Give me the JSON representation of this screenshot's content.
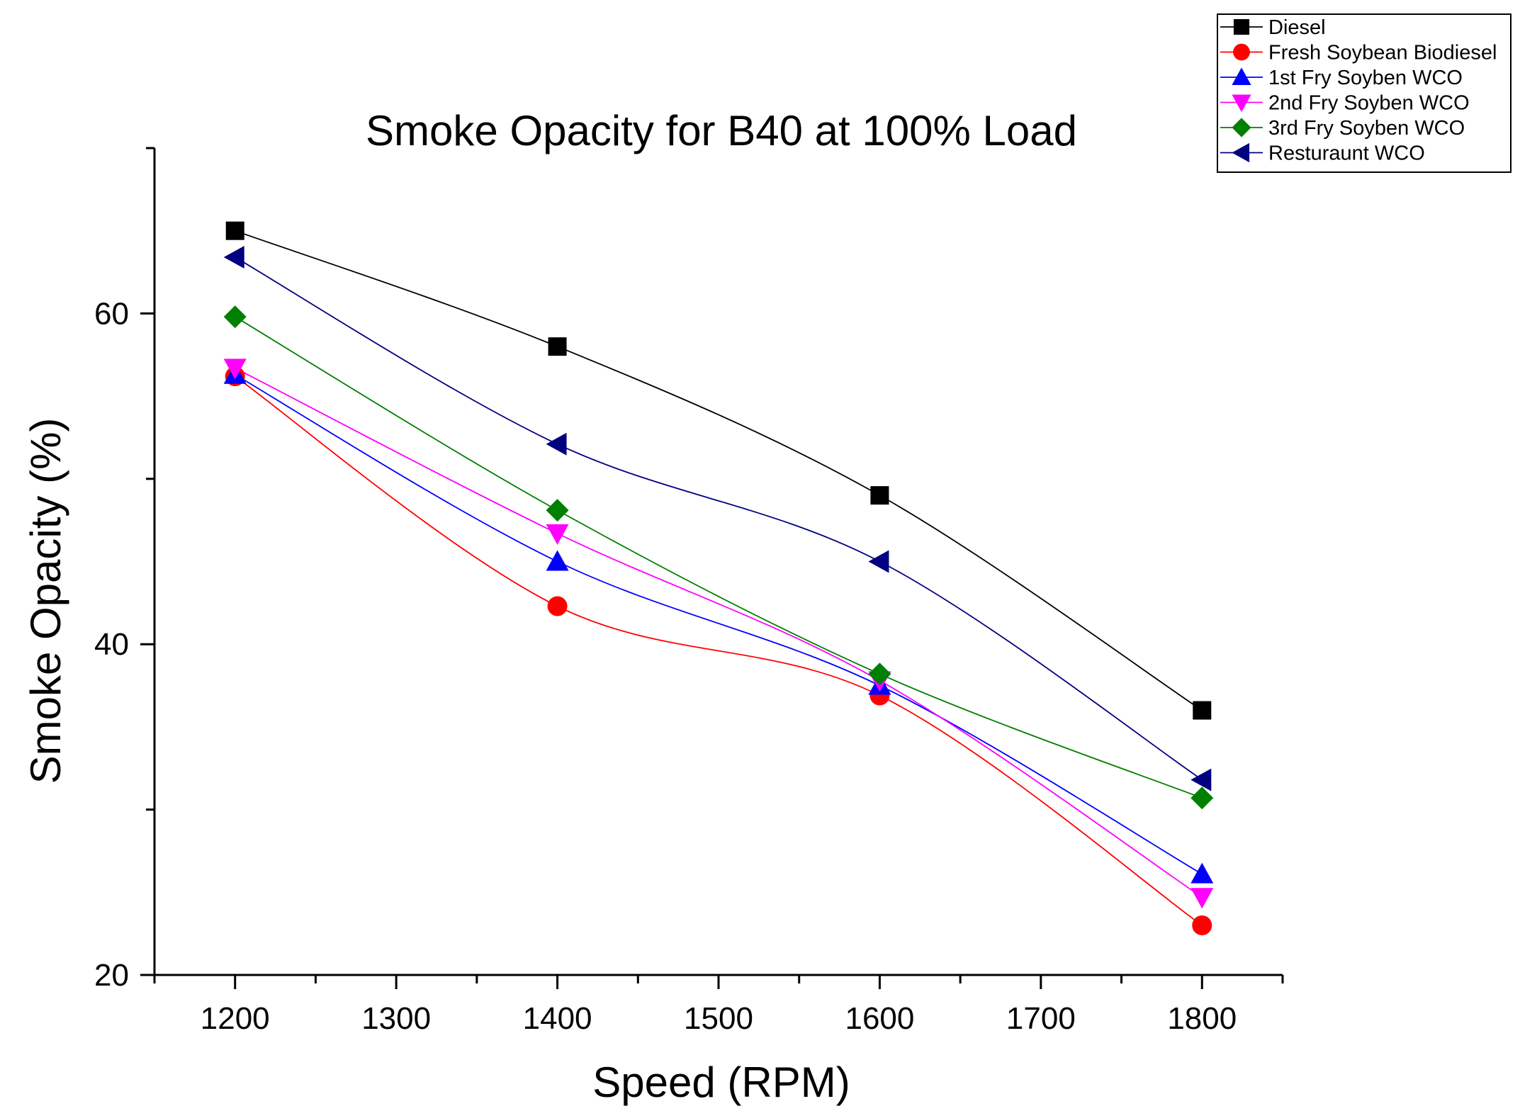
{
  "chart_data": {
    "type": "line",
    "title": "Smoke Opacity for B40 at 100% Load",
    "xlabel": "Speed (RPM)",
    "ylabel": "Smoke Opacity (%)",
    "xlim": [
      1150,
      1850
    ],
    "ylim": [
      20,
      70
    ],
    "x_ticks": [
      1200,
      1300,
      1400,
      1500,
      1600,
      1700,
      1800
    ],
    "x_tick_labels": [
      "1200",
      "1300",
      "1400",
      "1500",
      "1600",
      "1700",
      "1800"
    ],
    "y_ticks": [
      20,
      40,
      60
    ],
    "y_tick_labels": [
      "20",
      "40",
      "60"
    ],
    "grid": false,
    "legend_position": "top-right",
    "x": [
      1200,
      1400,
      1600,
      1800
    ],
    "series": [
      {
        "name": "Diesel",
        "values": [
          65,
          58,
          49,
          36
        ],
        "color": "#000000",
        "marker": "square"
      },
      {
        "name": "Fresh Soybean Biodiesel",
        "values": [
          56.2,
          42.3,
          36.9,
          23
        ],
        "color": "#ff0000",
        "marker": "circle"
      },
      {
        "name": "1st Fry Soyben WCO",
        "values": [
          56.3,
          45,
          37.5,
          26.1
        ],
        "color": "#0000ff",
        "marker": "triangle-up"
      },
      {
        "name": "2nd Fry Soyben WCO",
        "values": [
          56.7,
          46.7,
          37.8,
          24.7
        ],
        "color": "#ff00ff",
        "marker": "triangle-down"
      },
      {
        "name": "3rd Fry Soyben WCO",
        "values": [
          59.8,
          48.1,
          38.2,
          30.7
        ],
        "color": "#008000",
        "marker": "diamond"
      },
      {
        "name": "Resturaunt WCO",
        "values": [
          63.4,
          52.1,
          45,
          31.8
        ],
        "color": "#000080",
        "marker": "triangle-left"
      }
    ]
  }
}
